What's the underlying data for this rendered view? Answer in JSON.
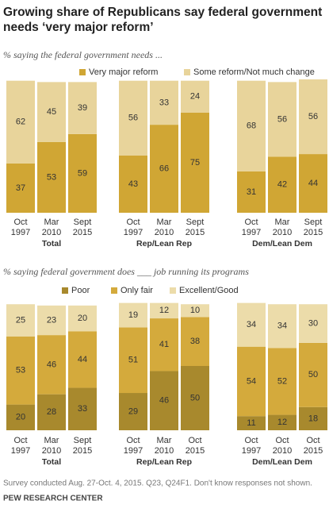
{
  "title": [
    "Growing share of Republicans say federal government",
    "needs ‘very major reform’"
  ],
  "note": "Survey conducted Aug. 27-Oct. 4, 2015. Q23, Q24F1. Don't know responses not shown.",
  "source": "PEW RESEARCH CENTER",
  "chart_data": [
    {
      "type": "stacked_bar",
      "subtitle": "% saying the federal government needs ...",
      "groups": [
        "Total",
        "Rep/Lean Rep",
        "Dem/Lean Dem"
      ],
      "categories": [
        [
          "Oct",
          "1997"
        ],
        [
          "Mar",
          "2010"
        ],
        [
          "Sept",
          "2015"
        ],
        [
          "Oct",
          "1997"
        ],
        [
          "Mar",
          "2010"
        ],
        [
          "Sept",
          "2015"
        ],
        [
          "Oct",
          "1997"
        ],
        [
          "Mar",
          "2010"
        ],
        [
          "Sept",
          "2015"
        ]
      ],
      "ylim": [
        0,
        100
      ],
      "series": [
        {
          "name": "Very major reform",
          "color": "#d0a634",
          "values": [
            37,
            53,
            59,
            43,
            66,
            75,
            31,
            42,
            44
          ]
        },
        {
          "name": "Some reform/Not much change",
          "color": "#e8d49b",
          "values": [
            62,
            45,
            39,
            56,
            33,
            24,
            68,
            56,
            56
          ]
        }
      ]
    },
    {
      "type": "stacked_bar",
      "subtitle": "% saying federal government does ___ job running its programs",
      "groups": [
        "Total",
        "Rep/Lean Rep",
        "Dem/Lean Dem"
      ],
      "categories": [
        [
          "Oct",
          "1997"
        ],
        [
          "Mar",
          "2010"
        ],
        [
          "Sept",
          "2015"
        ],
        [
          "Oct",
          "1997"
        ],
        [
          "Mar",
          "2010"
        ],
        [
          "Oct",
          "2015"
        ],
        [
          "Oct",
          "1997"
        ],
        [
          "Oct",
          "2010"
        ],
        [
          "Oct",
          "2015"
        ]
      ],
      "ylim": [
        0,
        100
      ],
      "series": [
        {
          "name": "Poor",
          "color": "#a8892d",
          "values": [
            20,
            28,
            33,
            29,
            46,
            50,
            11,
            12,
            18
          ]
        },
        {
          "name": "Only fair",
          "color": "#d4aa3c",
          "values": [
            53,
            46,
            44,
            51,
            41,
            38,
            54,
            52,
            50
          ]
        },
        {
          "name": "Excellent/Good",
          "color": "#ecdcaa",
          "values": [
            25,
            23,
            20,
            19,
            12,
            10,
            34,
            34,
            30
          ]
        }
      ]
    }
  ]
}
